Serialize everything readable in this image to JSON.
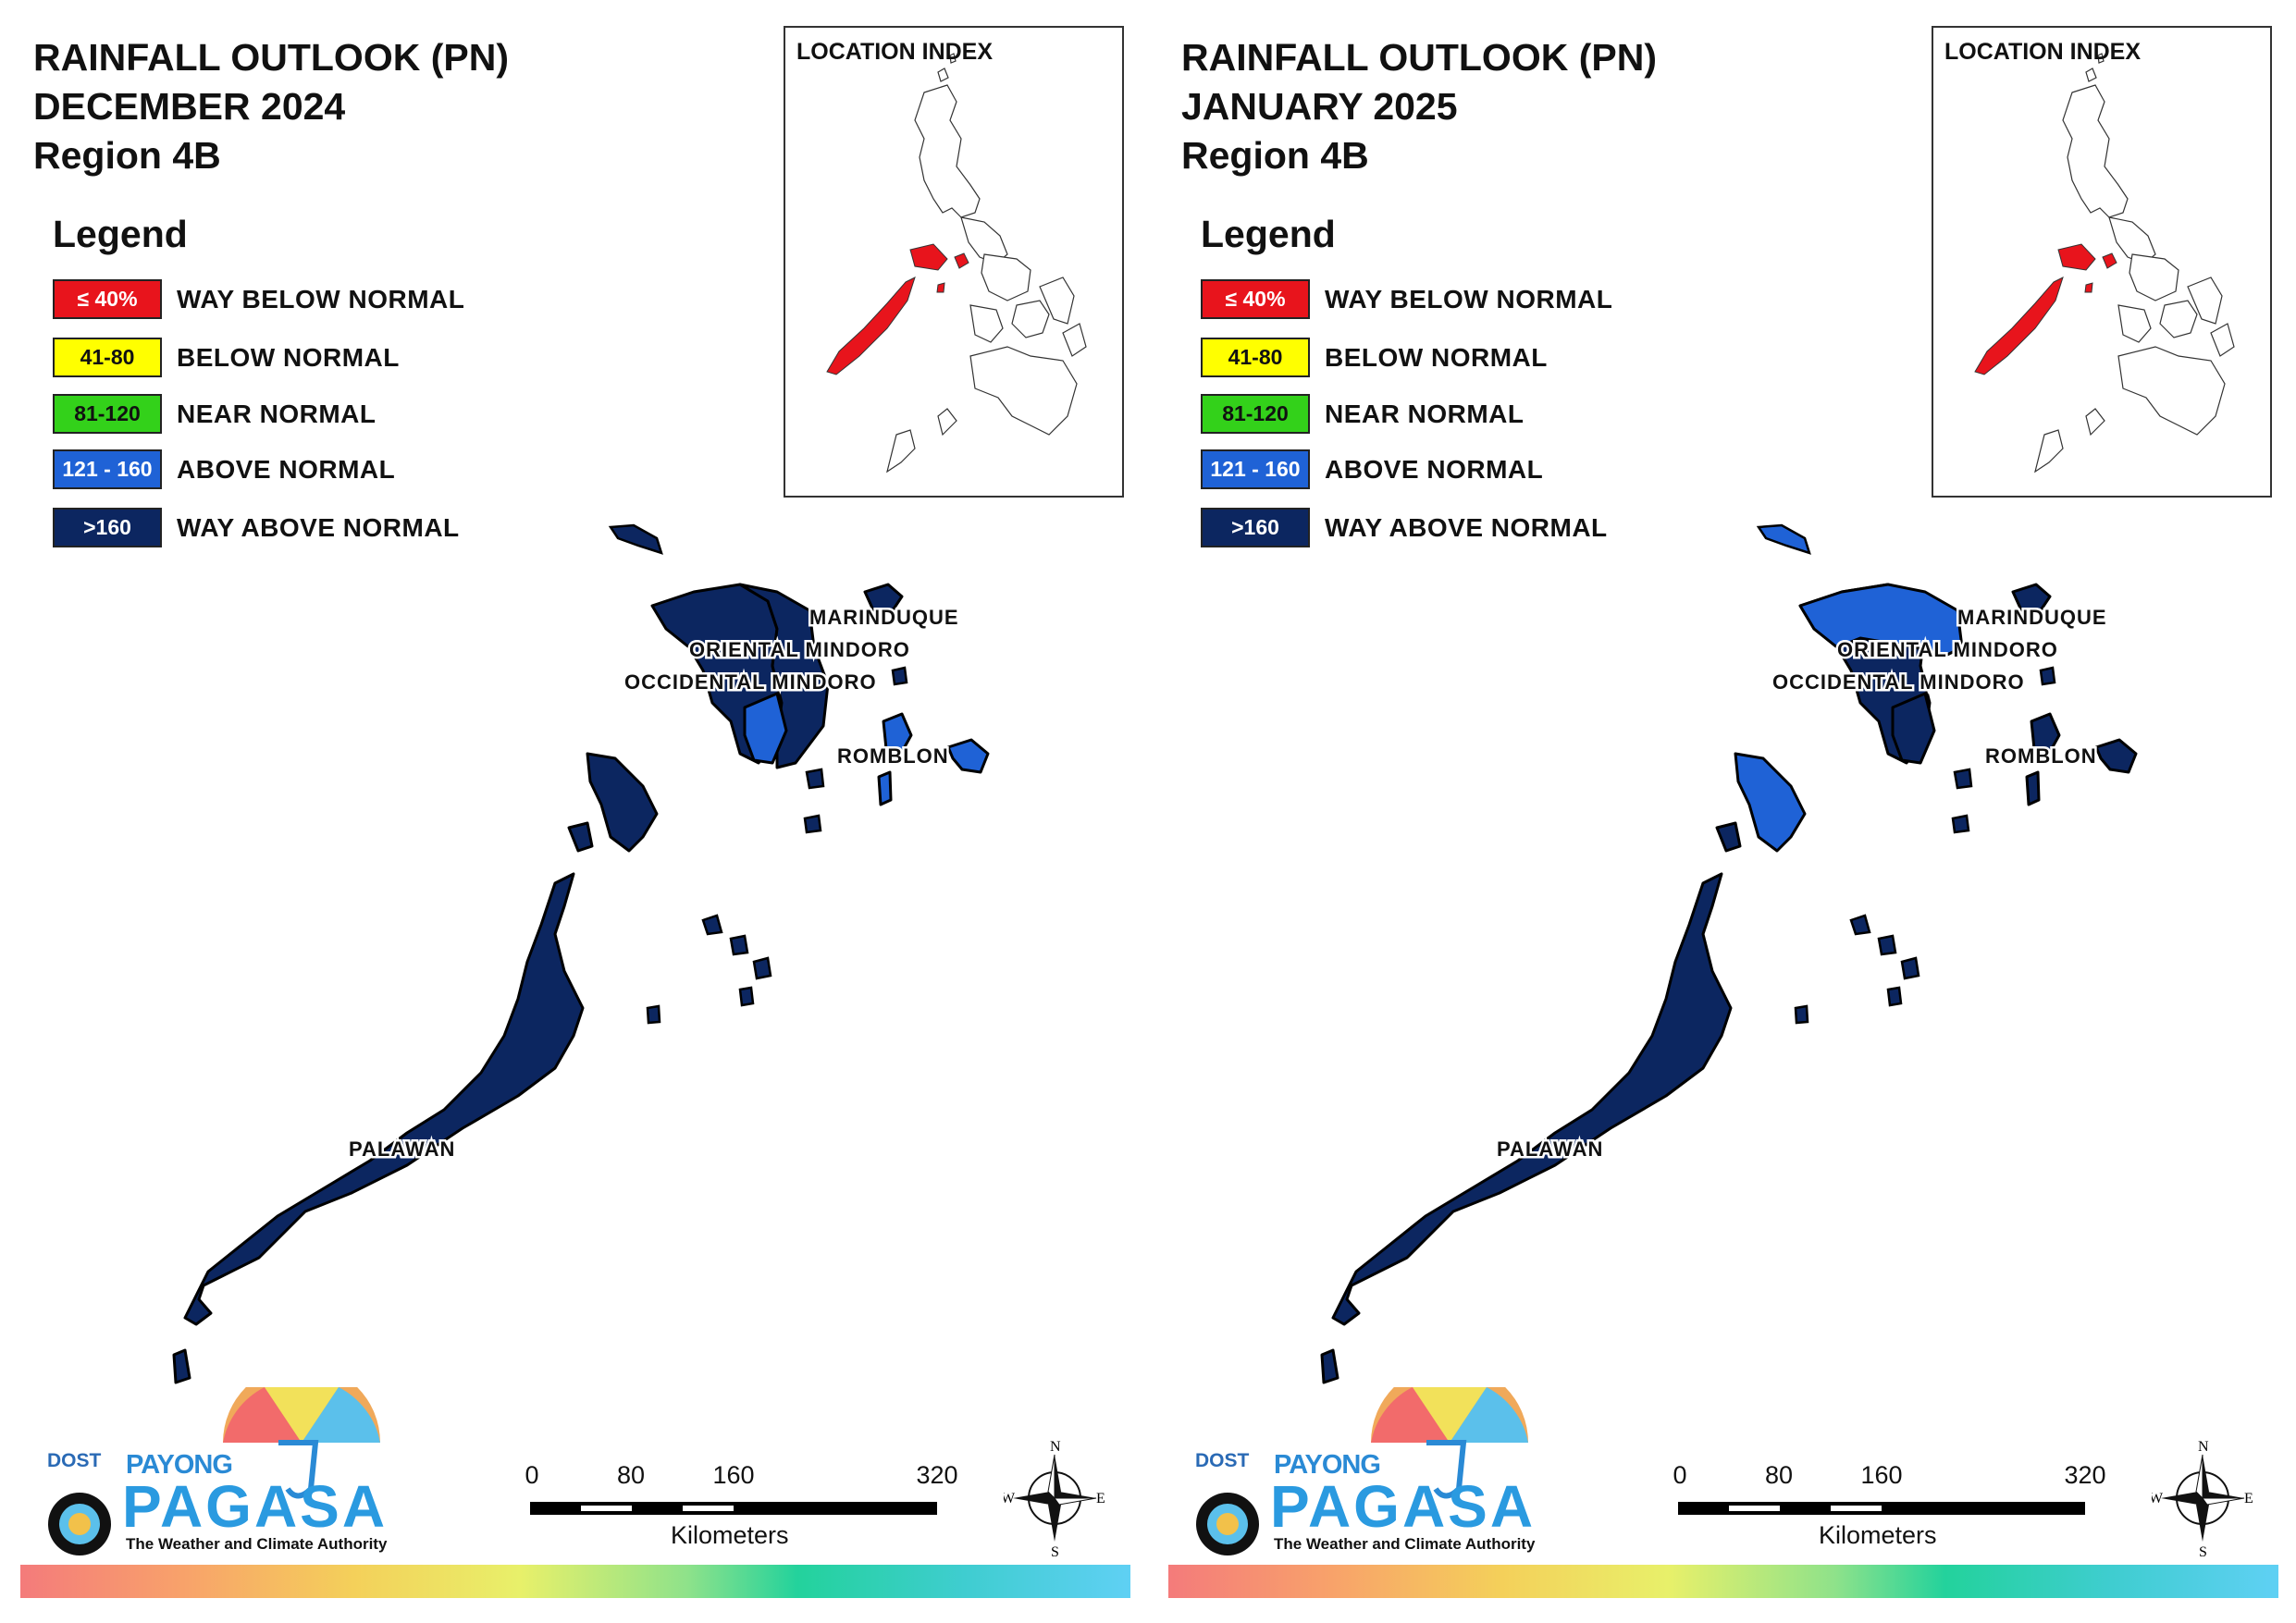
{
  "panels": [
    {
      "title_line1": "RAINFALL OUTLOOK (PN)",
      "title_line2": "DECEMBER 2024",
      "title_line3": "Region 4B",
      "provinces": {
        "occidental_mindoro": "#0c2660",
        "oriental_mindoro": "#0c2660",
        "mindoro_south": "#1f62d6",
        "marinduque": "#0c2660",
        "romblon_main": "#1f62d6",
        "romblon_sibuyan": "#1f62d6",
        "palawan": "#0c2660",
        "palawan_north": "#0c2660",
        "islets": "#0c2660"
      }
    },
    {
      "title_line1": "RAINFALL OUTLOOK (PN)",
      "title_line2": "JANUARY 2025",
      "title_line3": "Region 4B",
      "provinces": {
        "occidental_mindoro": "#0c2660",
        "oriental_mindoro": "#1f62d6",
        "mindoro_south": "#0c2660",
        "marinduque": "#0c2660",
        "romblon_main": "#0c2660",
        "romblon_sibuyan": "#0c2660",
        "palawan": "#0c2660",
        "palawan_north": "#1f62d6",
        "islets": "#0c2660"
      }
    }
  ],
  "legend": {
    "title": "Legend",
    "items": [
      {
        "range": "≤ 40%",
        "label": "WAY BELOW NORMAL",
        "color": "#e8141c",
        "text_color": "#ffffff"
      },
      {
        "range": "41-80",
        "label": "BELOW NORMAL",
        "color": "#ffff00",
        "text_color": "#111111"
      },
      {
        "range": "81-120",
        "label": "NEAR NORMAL",
        "color": "#33d11a",
        "text_color": "#111111"
      },
      {
        "range": "121 - 160",
        "label": "ABOVE NORMAL",
        "color": "#1f62d6",
        "text_color": "#ffffff"
      },
      {
        "range": ">160",
        "label": "WAY ABOVE NORMAL",
        "color": "#0c2660",
        "text_color": "#ffffff"
      }
    ]
  },
  "location_index": {
    "title": "LOCATION INDEX",
    "highlight_color": "#e8141c"
  },
  "labels": {
    "marinduque": "MARINDUQUE",
    "oriental_mindoro": "ORIENTAL MINDORO",
    "occidental_mindoro": "OCCIDENTAL MINDORO",
    "romblon": "ROMBLON",
    "palawan": "PALAWAN"
  },
  "logo": {
    "dost": "DOST",
    "payong": "PAYONG",
    "pagasa": "PAGASA",
    "tagline": "The Weather and Climate Authority"
  },
  "scale": {
    "ticks": [
      "0",
      "80",
      "160",
      "320"
    ],
    "unit": "Kilometers"
  },
  "compass": {
    "n": "N",
    "s": "S",
    "e": "E",
    "w": "W"
  }
}
